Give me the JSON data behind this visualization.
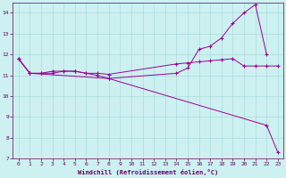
{
  "xlabel": "Windchill (Refroidissement éolien,°C)",
  "background_color": "#cdf0f0",
  "grid_color": "#aadddd",
  "line_color": "#990099",
  "ylim": [
    7,
    14.5
  ],
  "xlim": [
    -0.5,
    23.5
  ],
  "yticks": [
    7,
    8,
    9,
    10,
    11,
    12,
    13,
    14
  ],
  "xticks": [
    0,
    1,
    2,
    3,
    4,
    5,
    6,
    7,
    8,
    9,
    10,
    11,
    12,
    13,
    14,
    15,
    16,
    17,
    18,
    19,
    20,
    21,
    22,
    23
  ],
  "line1_x": [
    0,
    1,
    2,
    3,
    4,
    5,
    6,
    7,
    8,
    14,
    15,
    16,
    17,
    18,
    19,
    20,
    21,
    22
  ],
  "line1_y": [
    11.8,
    11.1,
    11.1,
    11.1,
    11.2,
    11.2,
    11.1,
    11.0,
    10.85,
    11.1,
    11.35,
    12.25,
    12.4,
    12.8,
    13.5,
    14.0,
    14.4,
    12.0
  ],
  "line2_x": [
    0,
    1,
    2,
    3,
    4,
    5,
    6,
    7,
    8,
    14,
    15,
    16,
    17,
    18,
    19,
    20,
    21,
    22,
    23
  ],
  "line2_y": [
    11.8,
    11.1,
    11.1,
    11.2,
    11.2,
    11.2,
    11.1,
    11.1,
    11.05,
    11.55,
    11.6,
    11.65,
    11.7,
    11.75,
    11.8,
    11.45,
    11.45,
    11.45,
    11.45
  ],
  "line3_x": [
    0,
    1,
    8,
    22,
    23
  ],
  "line3_y": [
    11.8,
    11.1,
    10.85,
    8.6,
    7.3
  ]
}
